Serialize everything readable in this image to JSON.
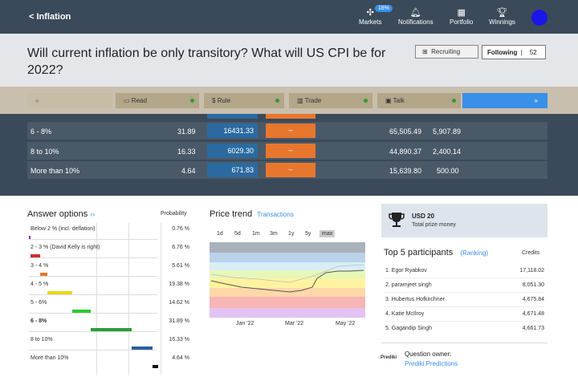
{
  "nav": {
    "back": "Inflation",
    "badge": "18%",
    "items": [
      {
        "label": "Markets",
        "icon": "markets-icon"
      },
      {
        "label": "Notifications",
        "icon": "bell-icon"
      },
      {
        "label": "Portfolio",
        "icon": "briefcase-icon"
      },
      {
        "label": "Winnings",
        "icon": "trophy-icon"
      }
    ]
  },
  "question": {
    "title": "Will current inflation be only transitory? What will US CPI be for 2022?",
    "recruit_label": "Recruiting",
    "follow_label": "Following",
    "follow_count": "52"
  },
  "steps": {
    "back": "«",
    "read": "Read",
    "rule": "Rule",
    "trade": "Trade",
    "talk": "Talk",
    "next": "»"
  },
  "market_rows": [
    {
      "label": "6 - 8%",
      "prob": "31.89",
      "price": "16431.33",
      "action": "–",
      "shares": "65,505.49",
      "value": "5,907.89"
    },
    {
      "label": "8 to 10%",
      "prob": "16.33",
      "price": "6029.30",
      "action": "–",
      "shares": "44,890.37",
      "value": "2,400.14"
    },
    {
      "label": "More than 10%",
      "prob": "4.64",
      "price": "671.83",
      "action": "–",
      "shares": "15,639.80",
      "value": "500.00"
    }
  ],
  "answers": {
    "title": "Answer options",
    "toggle": "‹›",
    "prob_header": "Probability",
    "rows": [
      {
        "label": "Below 2 % (incl. deflation)",
        "prob": "0.76 %",
        "color": "#7a3cc0",
        "bold": false
      },
      {
        "label": "2 - 3 % (David Kelly is right)",
        "prob": "6.76 %",
        "color": "#d32a2a",
        "bold": false
      },
      {
        "label": "3 - 4 %",
        "prob": "5.61 %",
        "color": "#e8772e",
        "bold": false
      },
      {
        "label": "4 - 5 %",
        "prob": "19.38 %",
        "color": "#e6d91e",
        "bold": false
      },
      {
        "label": "5 - 6%",
        "prob": "14.62 %",
        "color": "#2ecb2e",
        "bold": false
      },
      {
        "label": "6 - 8%",
        "prob": "31.89 %",
        "color": "#2e9b3a",
        "bold": true
      },
      {
        "label": "8 to 10%",
        "prob": "16.33 %",
        "color": "#2b5fa0",
        "bold": false
      },
      {
        "label": "More than 10%",
        "prob": "4.64 %",
        "color": "#111111",
        "bold": false
      }
    ]
  },
  "price_trend": {
    "title": "Price trend",
    "link": "Transactions",
    "ranges": [
      "1d",
      "5d",
      "1m",
      "3m",
      "1y",
      "5y",
      "max"
    ],
    "selected_range": "max",
    "x_labels": [
      "Jan '22",
      "Mar '22",
      "May '22"
    ]
  },
  "prize": {
    "amount": "USD 20",
    "label": "Total prize money"
  },
  "top5": {
    "title": "Top 5 participants",
    "link": "(Ranking)",
    "credits_header": "Credits",
    "rows": [
      {
        "name": "1. Egor Ryabkov",
        "credits": "17,118.02"
      },
      {
        "name": "2. paramjeet singh",
        "credits": "8,051.30"
      },
      {
        "name": "3. Hubertus Hofkirchner",
        "credits": "4,675.84"
      },
      {
        "name": "4. Katie McIlroy",
        "credits": "4,671.48"
      },
      {
        "name": "5. Gagandip Singh",
        "credits": "4,661.73"
      }
    ]
  },
  "owner": {
    "logo_text": "Prediki",
    "label": "Question owner:",
    "name": "Prediki Predictions"
  }
}
